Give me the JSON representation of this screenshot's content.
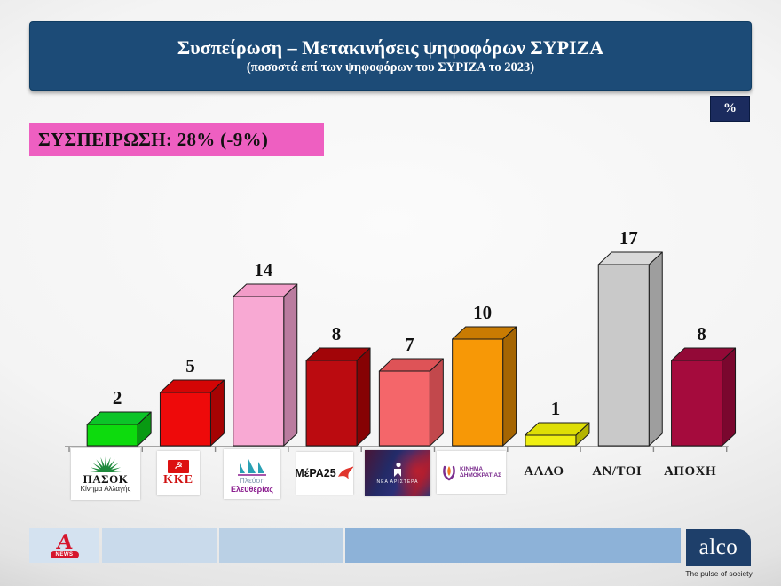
{
  "header": {
    "title": "Συσπείρωση – Μετακινήσεις ψηφοφόρων ΣΥΡΙΖΑ",
    "subtitle": "(ποσοστά επί των ψηφοφόρων του ΣΥΡΙΖΑ το 2023)",
    "bg_color": "#1c4b77"
  },
  "unit_badge": {
    "label": "%",
    "bg_color": "#1b2b5e"
  },
  "summary": {
    "label": "ΣΥΣΠΕΙΡΩΣΗ: 28% (-9%)",
    "bg_color": "#ee5fc1"
  },
  "chart_data": {
    "type": "bar",
    "style": "3d-column",
    "title": "Συσπείρωση – Μετακινήσεις ψηφοφόρων ΣΥΡΙΖΑ",
    "subtitle": "(ποσοστά επί των ψηφοφόρων του ΣΥΡΙΖΑ το 2023)",
    "unit": "%",
    "categories": [
      "ΠΑΣΟΚ",
      "ΚΚΕ",
      "ΠΛΕΥΣΗ ΕΛΕΥΘΕΡΙΑΣ",
      "ΜέΡΑ25",
      "ΝΕΑ ΑΡΙΣΤΕΡΑ",
      "ΚΙΝΗΜΑ ΔΗΜΟΚΡΑΤΙΑΣ",
      "ΑΛΛΟ",
      "ΑΝ/ΤΟΙ",
      "ΑΠΟΧΗ"
    ],
    "values": [
      2,
      5,
      14,
      8,
      7,
      10,
      1,
      17,
      8
    ],
    "ylim": [
      0,
      18
    ],
    "grid": false,
    "legend": "none",
    "bar_colors": [
      {
        "front": "#0ddb0d",
        "top": "#0cc428",
        "side": "#089a12"
      },
      {
        "front": "#ee0a0a",
        "top": "#d30505",
        "side": "#a60303"
      },
      {
        "front": "#f8a9d3",
        "top": "#f29cc8",
        "side": "#ba7c9f"
      },
      {
        "front": "#bb0b10",
        "top": "#a20508",
        "side": "#860204"
      },
      {
        "front": "#f4666a",
        "top": "#de5357",
        "side": "#c2484c"
      },
      {
        "front": "#f79806",
        "top": "#c97b02",
        "side": "#a56502"
      },
      {
        "front": "#efef12",
        "top": "#dede05",
        "side": "#b4b402"
      },
      {
        "front": "#c9c9c9",
        "top": "#d9d9d9",
        "side": "#9e9e9e"
      },
      {
        "front": "#a50b3d",
        "top": "#930937",
        "side": "#7a072e"
      }
    ],
    "labels": [
      {
        "kind": "logo",
        "logo": "pasok"
      },
      {
        "kind": "logo",
        "logo": "kke"
      },
      {
        "kind": "logo",
        "logo": "plefsi"
      },
      {
        "kind": "logo",
        "logo": "mera25"
      },
      {
        "kind": "logo",
        "logo": "nea_aristera"
      },
      {
        "kind": "logo",
        "logo": "kinima_dimokratias"
      },
      {
        "kind": "text",
        "text": "ΑΛΛΟ"
      },
      {
        "kind": "text",
        "text": "ΑΝ/ΤΟΙ"
      },
      {
        "kind": "text",
        "text": "ΑΠΟΧΗ"
      }
    ]
  },
  "logos": {
    "pasok": {
      "name": "ΠΑΣΟΚ",
      "sub": "Κίνημα Αλλαγής",
      "sun_color": "#1e8a3c"
    },
    "kke": {
      "name": "ΚΚΕ",
      "flag_symbol": "☭",
      "color": "#d01010"
    },
    "plefsi": {
      "line1": "Πλεύση",
      "line2": "Ελευθερίας",
      "sail_color": "#2aa0b4"
    },
    "mera25": {
      "name": "ΜέΡΑ25",
      "bird_color": "#e0342c"
    },
    "nea_aristera": {
      "name": "ΝΕΑ ΑΡΙΣΤΕΡΑ"
    },
    "kinima_dimokratias": {
      "line1": "ΚΙΝΗΜΑ",
      "line2": "ΔΗΜΟΚΡΑΤΙΑΣ",
      "tulip_purple": "#7b2d8e",
      "tulip_orange": "#f07820"
    }
  },
  "footer": {
    "alpha_news": {
      "letter": "A",
      "badge": "NEWS"
    },
    "block_colors": [
      "#d4e2f0",
      "#c9daeb",
      "#bad0e5",
      "#8db2d8"
    ],
    "alco": {
      "name": "alco",
      "tagline": "The pulse of society",
      "bg_color": "#1e3f6a"
    }
  }
}
